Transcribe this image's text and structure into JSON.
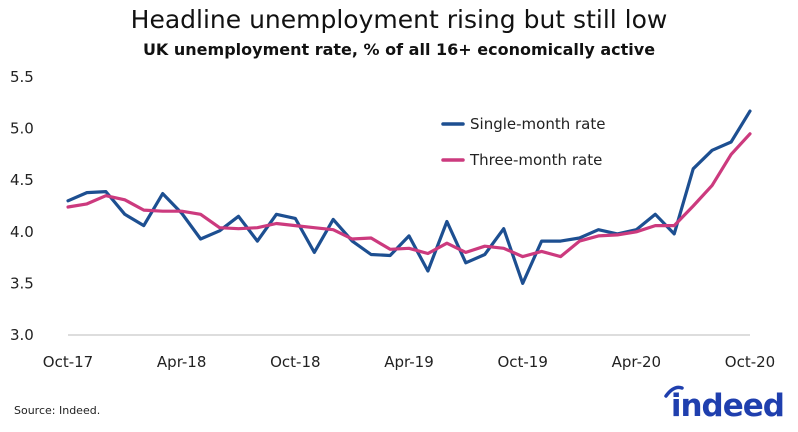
{
  "title": "Headline unemployment rising but still low",
  "subtitle": "UK unemployment rate, % of all 16+ economically active",
  "source": "Source: Indeed.",
  "logo_text": "indeed",
  "colors": {
    "single": "#1d4f91",
    "three": "#cc3a7e",
    "brand": "#1f3fae"
  },
  "chart_data": {
    "type": "line",
    "title": "Headline unemployment rising but still low",
    "subtitle": "UK unemployment rate, % of all 16+ economically active",
    "xlabel": "",
    "ylabel": "",
    "ylim": [
      3.0,
      5.5
    ],
    "yticks": [
      "3.0",
      "3.5",
      "4.0",
      "4.5",
      "5.0",
      "5.5"
    ],
    "xtick_labels": [
      "Oct-17",
      "Apr-18",
      "Oct-18",
      "Apr-19",
      "Oct-19",
      "Apr-20",
      "Oct-20"
    ],
    "grid": false,
    "legend_position": "top-right",
    "x": [
      "Oct-17",
      "Nov-17",
      "Dec-17",
      "Jan-18",
      "Feb-18",
      "Mar-18",
      "Apr-18",
      "May-18",
      "Jun-18",
      "Jul-18",
      "Aug-18",
      "Sep-18",
      "Oct-18",
      "Nov-18",
      "Dec-18",
      "Jan-19",
      "Feb-19",
      "Mar-19",
      "Apr-19",
      "May-19",
      "Jun-19",
      "Jul-19",
      "Aug-19",
      "Sep-19",
      "Oct-19",
      "Nov-19",
      "Dec-19",
      "Jan-20",
      "Feb-20",
      "Mar-20",
      "Apr-20",
      "May-20",
      "Jun-20",
      "Jul-20",
      "Aug-20",
      "Sep-20",
      "Oct-20"
    ],
    "series": [
      {
        "name": "Single-month rate",
        "color": "#1d4f91",
        "values": [
          4.3,
          4.38,
          4.39,
          4.17,
          4.06,
          4.37,
          4.18,
          3.93,
          4.01,
          4.15,
          3.91,
          4.17,
          4.13,
          3.8,
          4.12,
          3.91,
          3.78,
          3.77,
          3.96,
          3.62,
          4.1,
          3.7,
          3.78,
          4.03,
          3.5,
          3.91,
          3.91,
          3.94,
          4.02,
          3.98,
          4.02,
          4.17,
          3.98,
          4.61,
          4.79,
          4.87,
          5.17
        ]
      },
      {
        "name": "Three-month rate",
        "color": "#cc3a7e",
        "values": [
          4.24,
          4.27,
          4.35,
          4.31,
          4.21,
          4.2,
          4.2,
          4.17,
          4.04,
          4.03,
          4.04,
          4.08,
          4.06,
          4.04,
          4.02,
          3.93,
          3.94,
          3.83,
          3.84,
          3.79,
          3.89,
          3.8,
          3.86,
          3.84,
          3.76,
          3.81,
          3.76,
          3.91,
          3.96,
          3.97,
          4.0,
          4.06,
          4.06,
          4.25,
          4.45,
          4.75,
          4.95
        ]
      }
    ]
  }
}
